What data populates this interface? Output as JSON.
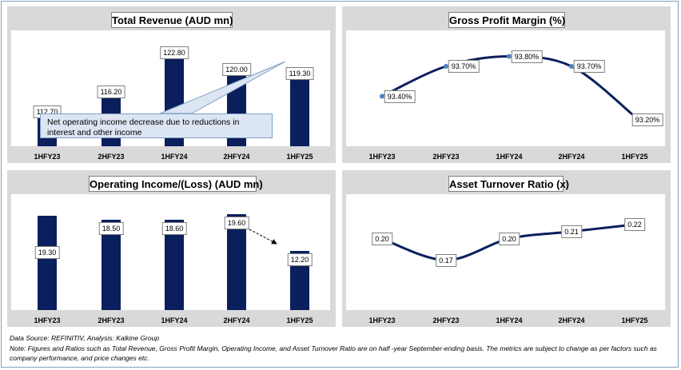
{
  "footer": {
    "source": "Data Source: REFINITIV, Analysis: Kalkine Group",
    "note": "Note: Figures and Ratios such as Total Revenue, Gross Profit Margin, Operating Income, and Asset Turnover Ratio are on half -year September-ending basis. The metrics are subject to change as per factors such as company performance, and price changes etc."
  },
  "callout_text": "Net operating income decrease due to reductions in interest and other income",
  "colors": {
    "bar": "#0b1f5c",
    "line": "#0b1f5c",
    "marker": "#4f81bd",
    "panel_bg": "#d9d9d9"
  },
  "chart_data": [
    {
      "type": "bar",
      "title": "Total Revenue (AUD mn)",
      "categories": [
        "1HFY23",
        "2HFY23",
        "1HFY24",
        "2HFY24",
        "1HFY25"
      ],
      "values": [
        112.7,
        116.2,
        122.8,
        120.0,
        119.3
      ],
      "labels": [
        "112.70",
        "116.20",
        "122.80",
        "120.00",
        "119.30"
      ],
      "ylim": [
        108,
        125
      ]
    },
    {
      "type": "line",
      "title": "Gross Profit Margin (%)",
      "categories": [
        "1HFY23",
        "2HFY23",
        "1HFY24",
        "2HFY24",
        "1HFY25"
      ],
      "values": [
        93.4,
        93.7,
        93.8,
        93.7,
        93.2
      ],
      "labels": [
        "93.40%",
        "93.70%",
        "93.80%",
        "93.70%",
        "93.20%"
      ],
      "ylim": [
        92.9,
        93.9
      ]
    },
    {
      "type": "bar",
      "title": "Operating Income/(Loss) (AUD mn)",
      "categories": [
        "1HFY23",
        "2HFY23",
        "1HFY24",
        "2HFY24",
        "1HFY25"
      ],
      "values": [
        19.3,
        18.5,
        18.6,
        19.6,
        12.2
      ],
      "labels": [
        "19.30",
        "18.50",
        "18.60",
        "19.60",
        "12.20"
      ],
      "ylim": [
        0,
        20.5
      ]
    },
    {
      "type": "line",
      "title": "Asset Turnover Ratio (x)",
      "categories": [
        "1HFY23",
        "2HFY23",
        "1HFY24",
        "2HFY24",
        "1HFY25"
      ],
      "values": [
        0.2,
        0.17,
        0.2,
        0.21,
        0.22
      ],
      "labels": [
        "0.20",
        "0.17",
        "0.20",
        "0.21",
        "0.22"
      ],
      "ylim": [
        0.1,
        0.24
      ]
    }
  ]
}
